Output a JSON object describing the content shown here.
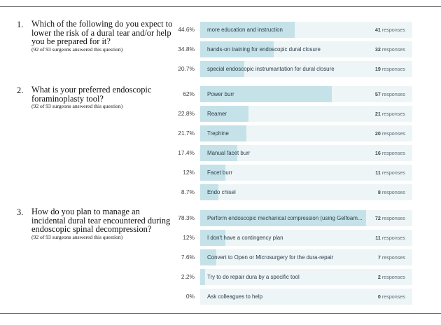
{
  "questions": [
    {
      "number": "1.",
      "text": "Which of the following do you expect to lower the risk of a dural tear and/or help you be prepared for it?",
      "note": "(92 of 93 surgeons answered this question)",
      "options": [
        {
          "percent": "44.6%",
          "fraction": 0.446,
          "label": "more education and instruction",
          "count": "41",
          "unit": "responses"
        },
        {
          "percent": "34.8%",
          "fraction": 0.348,
          "label": "hands-on training for endoscopic dural closure",
          "count": "32",
          "unit": "responses"
        },
        {
          "percent": "20.7%",
          "fraction": 0.207,
          "label": "special endoscopic instrumantation for dural closure",
          "count": "19",
          "unit": "responses"
        }
      ]
    },
    {
      "number": "2.",
      "text": "What is your preferred endoscopic foraminoplasty tool?",
      "note": "(92 of 93 surgeons answered this question)",
      "options": [
        {
          "percent": "62%",
          "fraction": 0.62,
          "label": "Power burr",
          "count": "57",
          "unit": "responses"
        },
        {
          "percent": "22.8%",
          "fraction": 0.228,
          "label": "Reamer",
          "count": "21",
          "unit": "responses"
        },
        {
          "percent": "21.7%",
          "fraction": 0.217,
          "label": "Trephine",
          "count": "20",
          "unit": "responses"
        },
        {
          "percent": "17.4%",
          "fraction": 0.174,
          "label": "Manual facet burr",
          "count": "16",
          "unit": "responses"
        },
        {
          "percent": "12%",
          "fraction": 0.12,
          "label": "Facet burr",
          "count": "11",
          "unit": "responses"
        },
        {
          "percent": "8.7%",
          "fraction": 0.087,
          "label": "Endo chisel",
          "count": "8",
          "unit": "responses"
        }
      ]
    },
    {
      "number": "3.",
      "text": "How do you plan to manage an incidental dural tear encountered during endoscopic spinal decompression?",
      "note": "(92 of 93 surgeons answered this question)",
      "options": [
        {
          "percent": "78.3%",
          "fraction": 0.783,
          "label": "Perform endoscopic mechanical compression (using Gelfoam...",
          "count": "72",
          "unit": "responses"
        },
        {
          "percent": "12%",
          "fraction": 0.12,
          "label": "I don't have a contingency plan",
          "count": "11",
          "unit": "responses"
        },
        {
          "percent": "7.6%",
          "fraction": 0.076,
          "label": "Convert to Open or Microsurgery for the dura-repair",
          "count": "7",
          "unit": "responses"
        },
        {
          "percent": "2.2%",
          "fraction": 0.022,
          "label": "Try to do repair dura by a specific tool",
          "count": "2",
          "unit": "responses"
        },
        {
          "percent": "0%",
          "fraction": 0,
          "label": "Ask colleagues to help",
          "count": "0",
          "unit": "responses"
        }
      ]
    }
  ]
}
